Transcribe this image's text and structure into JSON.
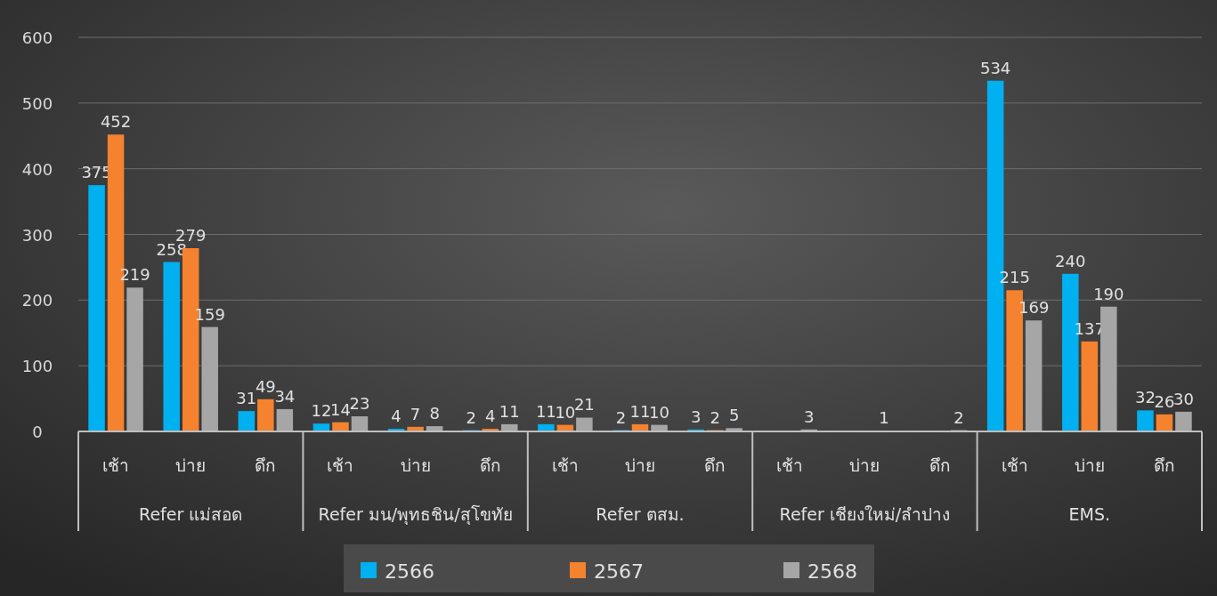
{
  "chart_data": {
    "type": "bar",
    "categories": [
      "เช้า",
      "บ่าย",
      "ดึก",
      "เช้า",
      "บ่าย",
      "ดึก",
      "เช้า",
      "บ่าย",
      "ดึก",
      "เช้า",
      "บ่าย",
      "ดึก",
      "เช้า",
      "บ่าย",
      "ดึก"
    ],
    "annotations": [
      "Refer แม่สอด",
      "Refer มน/พุทธชิน/สุโขทัย",
      "Refer ตสม.",
      "Refer เชียงใหม่/ลำปาง",
      "EMS."
    ],
    "series": [
      {
        "name": "2566",
        "color": "#00b0f0",
        "values": [
          375,
          258,
          31,
          12,
          4,
          2,
          11,
          2,
          3,
          null,
          null,
          null,
          534,
          240,
          32
        ]
      },
      {
        "name": "2567",
        "color": "#f5822f",
        "values": [
          452,
          279,
          49,
          14,
          7,
          4,
          10,
          11,
          2,
          null,
          null,
          null,
          215,
          137,
          26
        ]
      },
      {
        "name": "2568",
        "color": "#a6a6a6",
        "values": [
          219,
          159,
          34,
          23,
          8,
          11,
          21,
          10,
          5,
          3,
          1,
          2,
          169,
          190,
          30
        ]
      }
    ],
    "ylim": [
      0,
      600
    ],
    "yticks": [
      0,
      100,
      200,
      300,
      400,
      500,
      600
    ],
    "grid": "y",
    "data_labels": true,
    "legend": "bottom"
  }
}
